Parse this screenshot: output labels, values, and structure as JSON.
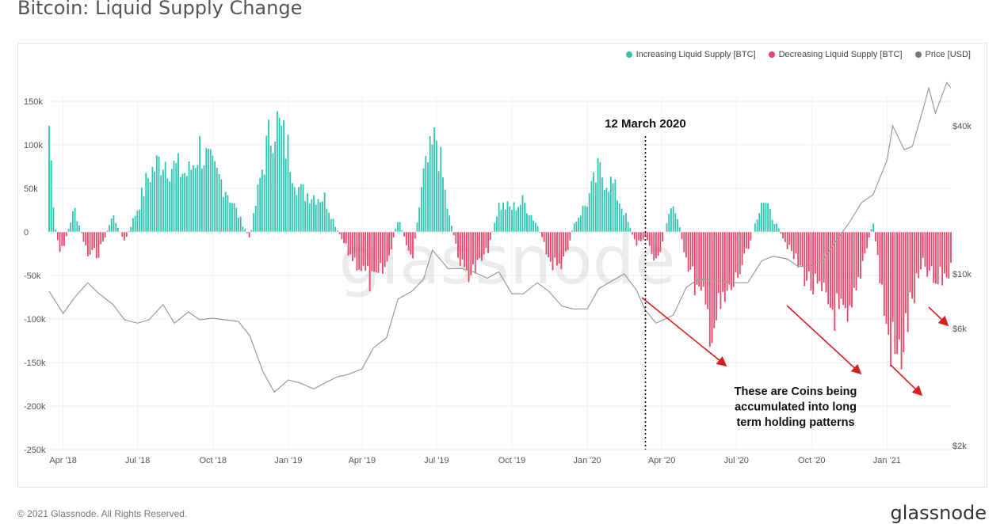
{
  "title": "Bitcoin: Liquid Supply Change",
  "footer": {
    "copyright": "© 2021 Glassnode. All Rights Reserved.",
    "brand": "glassnode"
  },
  "watermark": "glassnode",
  "colors": {
    "increase": "#2ec4b0",
    "decrease": "#e8456a",
    "price": "#9a9a9a",
    "annotation": "#d62020"
  },
  "legend": [
    {
      "label": "Increasing Liquid Supply [BTC]",
      "color": "#2ec4b0"
    },
    {
      "label": "Decreasing Liquid Supply [BTC]",
      "color": "#e8456a"
    },
    {
      "label": "Price [USD]",
      "color": "#777777"
    }
  ],
  "annotations": {
    "event_label": "12 March 2020",
    "event_date": "2020-03-12",
    "note_lines": [
      "These are Coins being",
      "accumulated into long",
      "term holding patterns"
    ]
  },
  "chart_data": {
    "type": "bar",
    "grid": true,
    "legend_position": "top-right",
    "x_range": [
      "2018-03-15",
      "2021-03-20"
    ],
    "x_ticks": [
      "Apr '18",
      "Jul '18",
      "Oct '18",
      "Jan '19",
      "Apr '19",
      "Jul '19",
      "Oct '19",
      "Jan '20",
      "Apr '20",
      "Jul '20",
      "Oct '20",
      "Jan '21"
    ],
    "x_tick_dates": [
      "2018-04-01",
      "2018-07-01",
      "2018-10-01",
      "2019-01-01",
      "2019-04-01",
      "2019-07-01",
      "2019-10-01",
      "2020-01-01",
      "2020-04-01",
      "2020-07-01",
      "2020-10-01",
      "2021-01-01"
    ],
    "y_left": {
      "ticks": [
        "150k",
        "100k",
        "50k",
        "0",
        "-50k",
        "-100k",
        "-150k",
        "-200k",
        "-250k"
      ],
      "tick_values": [
        150000,
        100000,
        50000,
        0,
        -50000,
        -100000,
        -150000,
        -200000,
        -250000
      ],
      "range": [
        -250000,
        155000
      ]
    },
    "y_right": {
      "scale": "log",
      "ticks": [
        "$40k",
        "$10k",
        "$6k",
        "$2k"
      ],
      "tick_values": [
        40000,
        10000,
        6000,
        2000
      ]
    },
    "supply_change": {
      "x": [
        "2018-03-15",
        "2018-03-22",
        "2018-03-29",
        "2018-04-15",
        "2018-05-01",
        "2018-05-15",
        "2018-06-01",
        "2018-06-15",
        "2018-07-01",
        "2018-07-15",
        "2018-08-01",
        "2018-08-15",
        "2018-09-01",
        "2018-09-15",
        "2018-10-01",
        "2018-10-15",
        "2018-11-01",
        "2018-11-15",
        "2018-12-01",
        "2018-12-15",
        "2019-01-01",
        "2019-01-15",
        "2019-02-01",
        "2019-02-15",
        "2019-03-01",
        "2019-03-15",
        "2019-04-01",
        "2019-04-15",
        "2019-05-01",
        "2019-05-15",
        "2019-06-01",
        "2019-06-15",
        "2019-07-01",
        "2019-07-15",
        "2019-08-01",
        "2019-08-15",
        "2019-09-01",
        "2019-09-15",
        "2019-10-01",
        "2019-10-15",
        "2019-11-01",
        "2019-11-15",
        "2019-12-01",
        "2019-12-15",
        "2020-01-01",
        "2020-01-15",
        "2020-02-01",
        "2020-02-15",
        "2020-03-01",
        "2020-03-12",
        "2020-03-25",
        "2020-04-15",
        "2020-05-01",
        "2020-05-15",
        "2020-06-01",
        "2020-06-15",
        "2020-07-01",
        "2020-07-15",
        "2020-08-01",
        "2020-08-15",
        "2020-09-01",
        "2020-09-15",
        "2020-10-01",
        "2020-10-15",
        "2020-11-01",
        "2020-11-15",
        "2020-12-01",
        "2020-12-15",
        "2021-01-01",
        "2021-01-15",
        "2021-02-01",
        "2021-02-15",
        "2021-03-01",
        "2021-03-15"
      ],
      "values": [
        158000,
        10000,
        -35000,
        35000,
        -35000,
        -30000,
        25000,
        -15000,
        35000,
        85000,
        110000,
        95000,
        85000,
        125000,
        90000,
        70000,
        25000,
        -10000,
        100000,
        170000,
        120000,
        60000,
        55000,
        50000,
        5000,
        -30000,
        -55000,
        -80000,
        -50000,
        20000,
        -40000,
        80000,
        140000,
        30000,
        -55000,
        -60000,
        -30000,
        40000,
        35000,
        45000,
        10000,
        -40000,
        -60000,
        10000,
        45000,
        90000,
        70000,
        30000,
        -20000,
        -5000,
        -50000,
        50000,
        -40000,
        -90000,
        -140000,
        -110000,
        -70000,
        -30000,
        50000,
        20000,
        -20000,
        -50000,
        -80000,
        -100000,
        -120000,
        -150000,
        -50000,
        15000,
        -150000,
        -195000,
        -100000,
        -50000,
        -80000,
        -60000
      ]
    },
    "price_usd": {
      "x": [
        "2018-03-15",
        "2018-04-01",
        "2018-04-15",
        "2018-05-01",
        "2018-05-15",
        "2018-06-01",
        "2018-06-15",
        "2018-07-01",
        "2018-07-15",
        "2018-08-01",
        "2018-08-15",
        "2018-09-01",
        "2018-09-15",
        "2018-10-01",
        "2018-10-15",
        "2018-11-01",
        "2018-11-15",
        "2018-12-01",
        "2018-12-15",
        "2019-01-01",
        "2019-01-15",
        "2019-02-01",
        "2019-02-15",
        "2019-03-01",
        "2019-03-15",
        "2019-04-01",
        "2019-04-15",
        "2019-05-01",
        "2019-05-15",
        "2019-06-01",
        "2019-06-15",
        "2019-06-26",
        "2019-07-15",
        "2019-08-01",
        "2019-08-15",
        "2019-09-01",
        "2019-09-15",
        "2019-10-01",
        "2019-10-15",
        "2019-11-01",
        "2019-11-15",
        "2019-12-01",
        "2019-12-15",
        "2020-01-01",
        "2020-01-15",
        "2020-02-01",
        "2020-02-15",
        "2020-03-01",
        "2020-03-12",
        "2020-03-25",
        "2020-04-15",
        "2020-05-01",
        "2020-05-15",
        "2020-06-01",
        "2020-06-15",
        "2020-07-01",
        "2020-07-15",
        "2020-08-01",
        "2020-08-15",
        "2020-09-01",
        "2020-09-15",
        "2020-10-01",
        "2020-10-15",
        "2020-11-01",
        "2020-11-15",
        "2020-12-01",
        "2020-12-15",
        "2021-01-01",
        "2021-01-08",
        "2021-01-22",
        "2021-02-01",
        "2021-02-15",
        "2021-02-21",
        "2021-03-01",
        "2021-03-15",
        "2021-03-20"
      ],
      "values": [
        8500,
        6900,
        8000,
        9200,
        8300,
        7500,
        6500,
        6300,
        6500,
        7500,
        6300,
        7000,
        6500,
        6600,
        6500,
        6400,
        5600,
        4000,
        3300,
        3700,
        3600,
        3400,
        3600,
        3800,
        3900,
        4100,
        5000,
        5500,
        7900,
        8500,
        9500,
        12500,
        10500,
        10500,
        10200,
        9600,
        10200,
        8300,
        8300,
        9200,
        8500,
        7400,
        7200,
        7200,
        8700,
        9400,
        10000,
        8600,
        7100,
        6300,
        6800,
        8800,
        9500,
        9500,
        9300,
        9200,
        9200,
        11300,
        11800,
        11500,
        10700,
        10800,
        11400,
        13800,
        16000,
        19500,
        21000,
        29000,
        40000,
        32000,
        33000,
        48000,
        57000,
        45000,
        60000,
        57000
      ]
    }
  }
}
